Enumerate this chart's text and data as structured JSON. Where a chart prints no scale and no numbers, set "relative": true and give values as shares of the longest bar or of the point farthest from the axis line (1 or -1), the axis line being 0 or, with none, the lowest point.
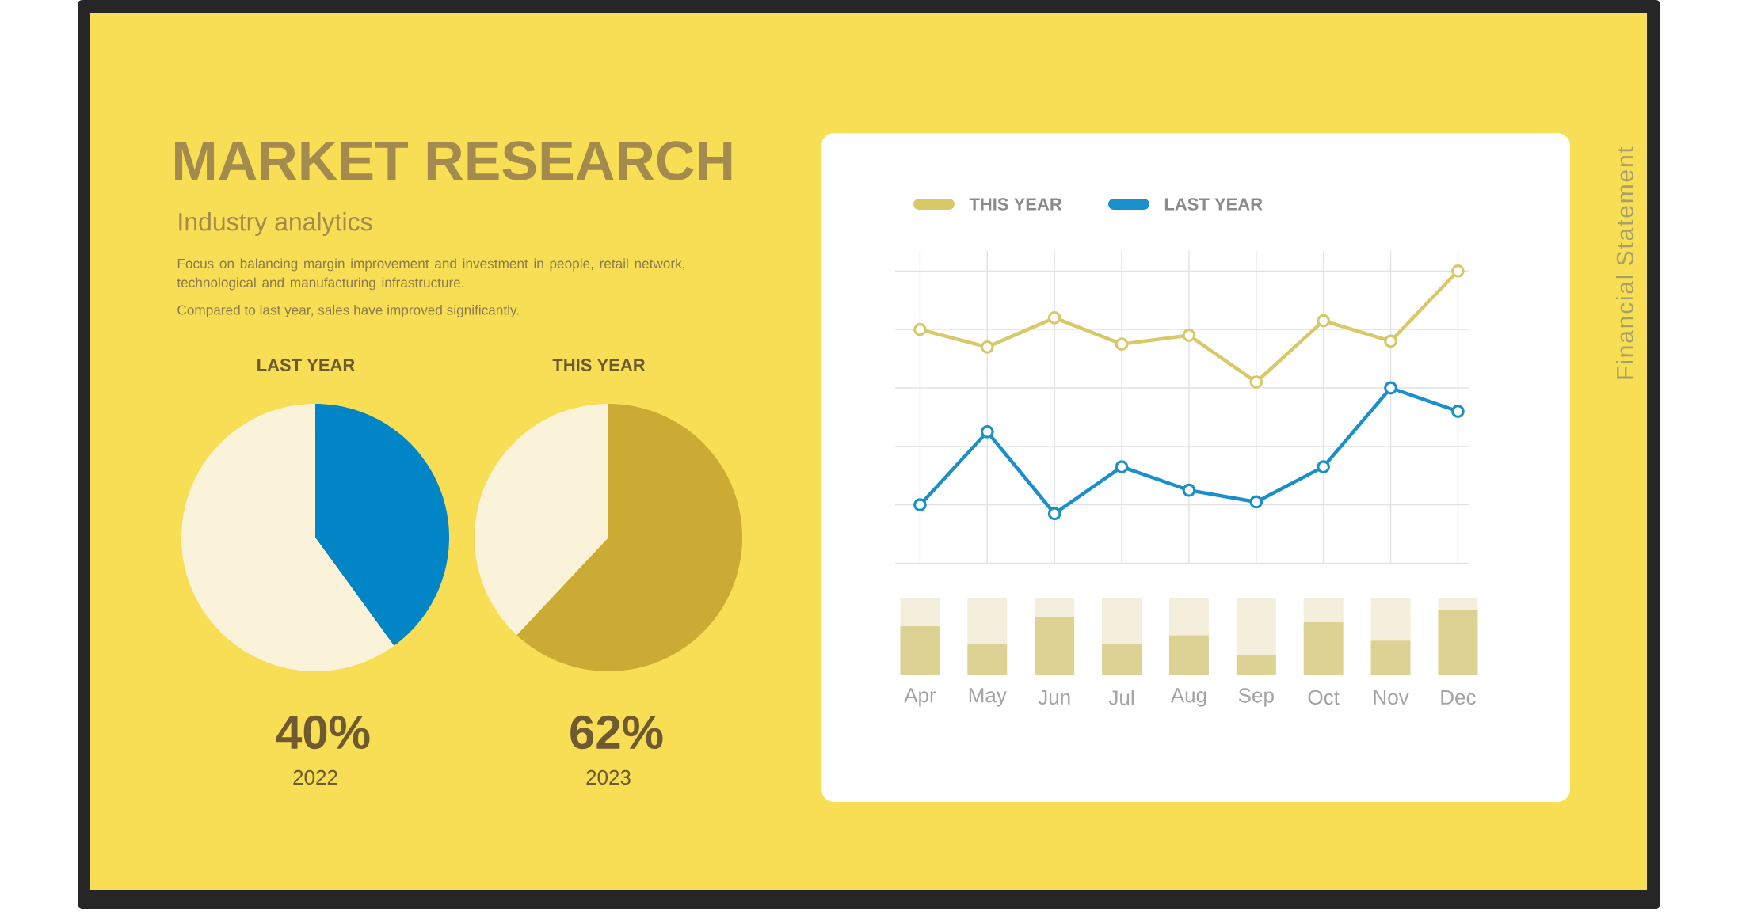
{
  "chart_data": [
    {
      "type": "other",
      "title": "MARKET RESEARCH",
      "subtitle": "Industry analytics",
      "annotations": [
        "Focus on balancing margin improvement and investment in people, retail network, technological and manufacturing infrastructure.",
        "Compared to last year, sales have improved significantly.",
        "Financial Statement"
      ]
    },
    {
      "type": "pie",
      "title": "LAST YEAR",
      "categories": [
        null,
        null
      ],
      "values": [
        40,
        60
      ],
      "colors": [
        "#0285c6",
        "#fbf3d9"
      ],
      "annotations": [
        "40%",
        "2022"
      ]
    },
    {
      "type": "pie",
      "title": "THIS YEAR",
      "categories": [
        null,
        null
      ],
      "values": [
        62,
        38
      ],
      "colors": [
        "#cbab33",
        "#fbf3d9"
      ],
      "annotations": [
        "62%",
        "2023"
      ]
    },
    {
      "type": "line",
      "categories": [
        null,
        null,
        null,
        null,
        null,
        null,
        null,
        null,
        null
      ],
      "relative": true,
      "grid": true,
      "legend": "top left",
      "marker": "circle",
      "series": [
        {
          "name": "THIS YEAR",
          "color": "#d8c867",
          "values": [
            0.8,
            0.74,
            0.84,
            0.75,
            0.78,
            0.62,
            0.83,
            0.76,
            1
          ]
        },
        {
          "name": "LAST YEAR",
          "color": "#1a8fcb",
          "values": [
            0.2,
            0.45,
            0.17,
            0.33,
            0.25,
            0.21,
            0.33,
            0.6,
            0.52
          ]
        }
      ]
    },
    {
      "type": "bar",
      "categories": [
        "Apr",
        "May",
        "Jun",
        "Jul",
        "Aug",
        "Sep",
        "Oct",
        "Nov",
        "Dec"
      ],
      "relative": true,
      "stacked": true,
      "series": [
        {
          "color": "#dcd294",
          "values": [
            0.64,
            0.41,
            0.76,
            0.41,
            0.52,
            0.26,
            0.69,
            0.45,
            0.85
          ]
        },
        {
          "color": "#f4eedd",
          "values": [
            0.36,
            0.59,
            0.24,
            0.59,
            0.48,
            0.74,
            0.31,
            0.55,
            0.15
          ]
        }
      ]
    }
  ]
}
